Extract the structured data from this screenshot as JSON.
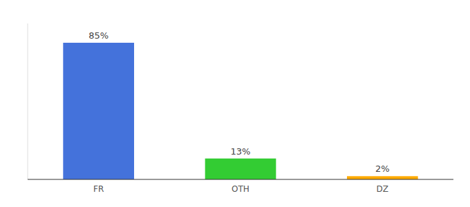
{
  "chart_data": {
    "type": "bar",
    "categories": [
      "FR",
      "OTH",
      "DZ"
    ],
    "values": [
      85,
      13,
      2
    ],
    "value_labels": [
      "85%",
      "13%",
      "2%"
    ],
    "colors": [
      "#4472db",
      "#33cc33",
      "#ffaa00"
    ],
    "ylim": [
      0,
      97
    ],
    "data_labels": true,
    "tick_labels": "x"
  }
}
